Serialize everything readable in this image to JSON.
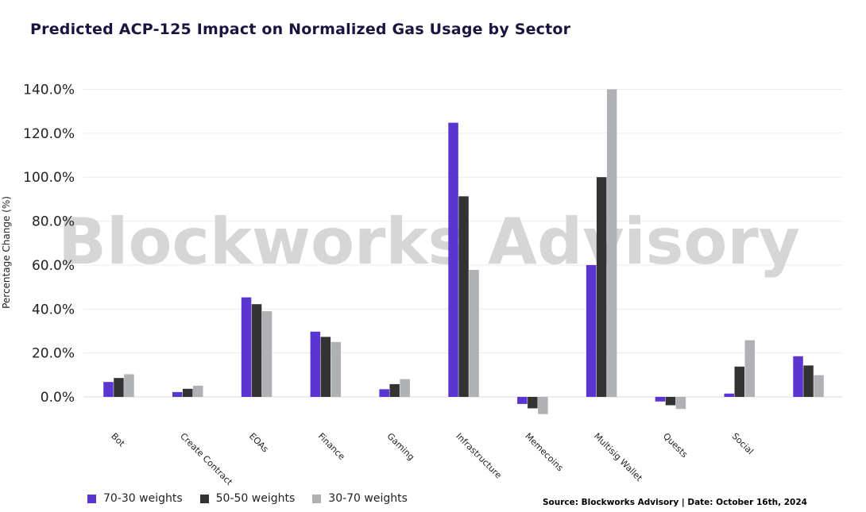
{
  "chart_data": {
    "type": "bar",
    "title": "Predicted ACP-125 Impact on Normalized Gas Usage by Sector",
    "ylabel": "Percentage Change (%)",
    "xlabel": "",
    "ylim": [
      -9,
      142
    ],
    "yticks": [
      "0.0%",
      "20.0%",
      "40.0%",
      "60.0%",
      "80.0%",
      "100.0%",
      "120.0%",
      "140.0%"
    ],
    "categories": [
      "Bot",
      "Create Contract",
      "EOAs",
      "Finance",
      "Gaming",
      "Infrastructure",
      "Memecoins",
      "Multisig Wallet",
      "Quests",
      "Social",
      ""
    ],
    "series": [
      {
        "name": "70-30 weights",
        "color": "#5b35cf",
        "values": [
          6.8,
          2.2,
          45.3,
          29.7,
          3.5,
          124.8,
          -3.2,
          60.0,
          -2.1,
          1.5,
          18.5
        ]
      },
      {
        "name": "50-50 weights",
        "color": "#333333",
        "values": [
          8.6,
          3.7,
          42.2,
          27.3,
          5.8,
          91.3,
          -5.2,
          100.0,
          -3.8,
          13.8,
          14.3
        ]
      },
      {
        "name": "30-70 weights",
        "color": "#b0b1b5",
        "values": [
          10.3,
          5.1,
          39.0,
          25.0,
          8.1,
          57.8,
          -7.8,
          140.0,
          -5.5,
          25.8,
          9.9
        ]
      }
    ],
    "grid": true,
    "legend_position": "bottom-left",
    "watermark": "Blockworks Advisory",
    "source": "Source: Blockworks Advisory | Date: October 16th, 2024"
  }
}
